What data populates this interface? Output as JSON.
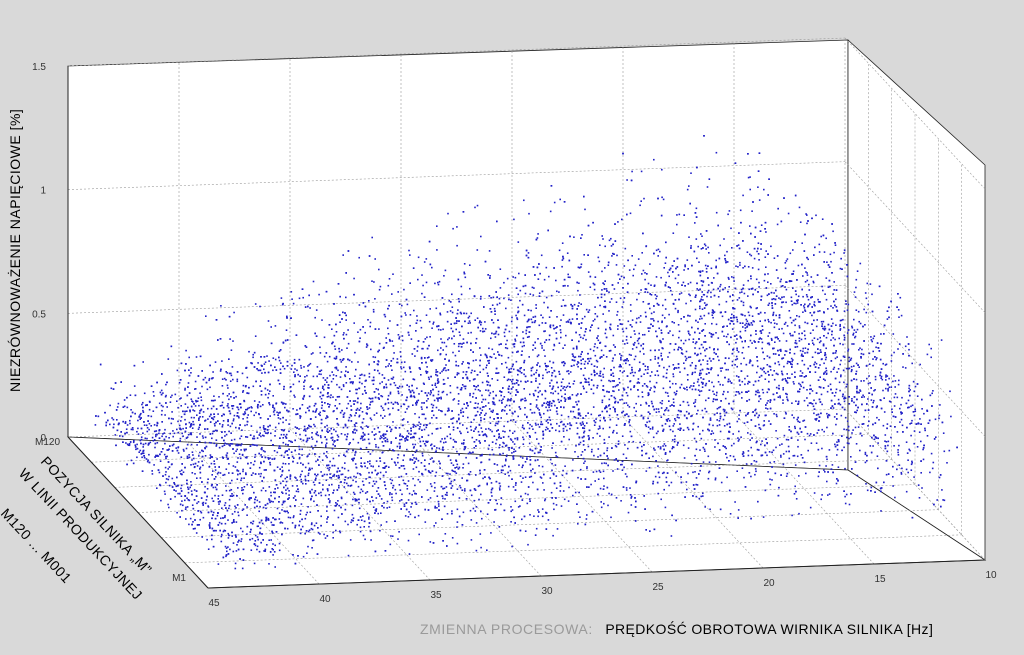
{
  "chart_data": {
    "type": "scatter",
    "projection": "3d",
    "zlabel": "NIEZRÓWNOWAŻENIE  NAPIĘCIOWE  [%]",
    "ylabel": [
      "POZYCJA SILNIKA „M”",
      "W LINII PRODUKCYJNEJ",
      "M120 ... M001"
    ],
    "xlabel_prefix": "ZMIENNA PROCESOWA:",
    "xlabel_main": "PRĘDKOŚĆ OBROTOWA WIRNIKA SILNIKA [Hz]",
    "xlim": [
      45,
      10
    ],
    "zlim": [
      0,
      1.5
    ],
    "x_ticks": [
      "45",
      "40",
      "35",
      "30",
      "25",
      "20",
      "15",
      "10"
    ],
    "z_ticks": [
      "0",
      "0.5",
      "1",
      "1.5"
    ],
    "y_ticks": [
      "M120",
      "M1"
    ],
    "grid": true,
    "marker_color": "#2222c8",
    "series": [
      {
        "values_description": "approximate envelope per speed (Hz): [speed, typical unbalance %, max unbalance %]",
        "envelope": [
          [
            43,
            0.12,
            0.3
          ],
          [
            40,
            0.18,
            0.45
          ],
          [
            37,
            0.25,
            0.6
          ],
          [
            34,
            0.3,
            0.72
          ],
          [
            31,
            0.35,
            0.8
          ],
          [
            28,
            0.4,
            0.88
          ],
          [
            25,
            0.45,
            0.95
          ],
          [
            22,
            0.5,
            1.05
          ],
          [
            19,
            0.55,
            1.15
          ],
          [
            16,
            0.55,
            1.2
          ],
          [
            13,
            0.5,
            1.0
          ],
          [
            11,
            0.4,
            0.8
          ]
        ]
      }
    ]
  }
}
